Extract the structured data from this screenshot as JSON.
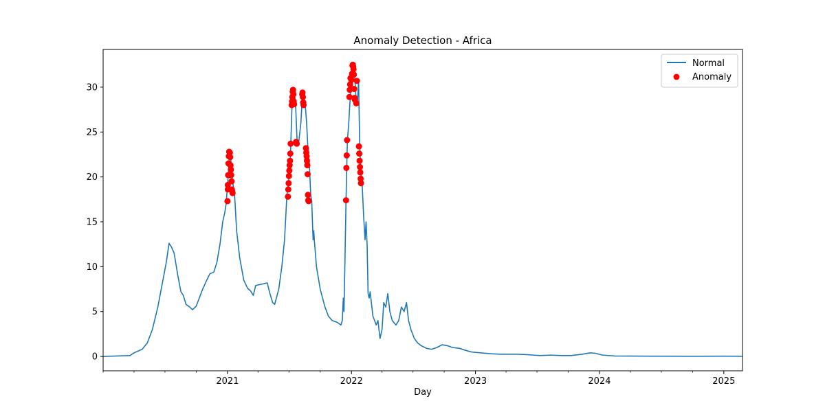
{
  "chart_data": {
    "type": "line",
    "title": "Anomaly Detection - Africa",
    "xlabel": "Day",
    "ylabel": "",
    "x_axis_type": "date",
    "xlim": [
      "2020-01-01",
      "2025-02-25"
    ],
    "ylim": [
      -1.6,
      34.2
    ],
    "x_ticks": [
      {
        "date": "2021-01-01",
        "label": "2021"
      },
      {
        "date": "2022-01-01",
        "label": "2022"
      },
      {
        "date": "2023-01-01",
        "label": "2023"
      },
      {
        "date": "2024-01-01",
        "label": "2024"
      },
      {
        "date": "2025-01-01",
        "label": "2025"
      }
    ],
    "y_ticks": [
      0,
      5,
      10,
      15,
      20,
      25,
      30
    ],
    "grid": false,
    "legend": {
      "placement": "top-right",
      "entries": [
        "Normal",
        "Anomaly"
      ]
    },
    "colors": {
      "normal": "#1f77b4",
      "anomaly": "#ff0000"
    },
    "series": [
      {
        "name": "Normal",
        "kind": "line",
        "points": [
          [
            "2020-01-01",
            0
          ],
          [
            "2020-03-20",
            0.1
          ],
          [
            "2020-04-01",
            0.4
          ],
          [
            "2020-04-25",
            0.8
          ],
          [
            "2020-05-10",
            1.5
          ],
          [
            "2020-05-25",
            3
          ],
          [
            "2020-06-10",
            5.5
          ],
          [
            "2020-06-25",
            8.5
          ],
          [
            "2020-07-05",
            10.5
          ],
          [
            "2020-07-13",
            12.6
          ],
          [
            "2020-07-20",
            12.2
          ],
          [
            "2020-07-28",
            11.5
          ],
          [
            "2020-08-08",
            9
          ],
          [
            "2020-08-17",
            7.2
          ],
          [
            "2020-08-24",
            6.8
          ],
          [
            "2020-09-01",
            5.8
          ],
          [
            "2020-09-12",
            5.5
          ],
          [
            "2020-09-20",
            5.2
          ],
          [
            "2020-10-01",
            5.6
          ],
          [
            "2020-10-10",
            6.5
          ],
          [
            "2020-10-20",
            7.5
          ],
          [
            "2020-11-01",
            8.5
          ],
          [
            "2020-11-10",
            9.2
          ],
          [
            "2020-11-22",
            9.4
          ],
          [
            "2020-12-01",
            10.5
          ],
          [
            "2020-12-10",
            12.5
          ],
          [
            "2020-12-18",
            15
          ],
          [
            "2020-12-24",
            16
          ],
          [
            "2020-12-28",
            17
          ],
          [
            "2021-01-01",
            19
          ],
          [
            "2021-01-05",
            21
          ],
          [
            "2021-01-08",
            22.9
          ],
          [
            "2021-01-12",
            21.5
          ],
          [
            "2021-01-16",
            19.5
          ],
          [
            "2021-01-22",
            18
          ],
          [
            "2021-01-28",
            14
          ],
          [
            "2021-02-06",
            11
          ],
          [
            "2021-02-18",
            8.5
          ],
          [
            "2021-03-01",
            7.6
          ],
          [
            "2021-03-10",
            7.3
          ],
          [
            "2021-03-18",
            6.8
          ],
          [
            "2021-03-25",
            7.9
          ],
          [
            "2021-04-05",
            8
          ],
          [
            "2021-04-18",
            8.1
          ],
          [
            "2021-04-28",
            8.2
          ],
          [
            "2021-05-06",
            7
          ],
          [
            "2021-05-14",
            6
          ],
          [
            "2021-05-20",
            5.8
          ],
          [
            "2021-06-01",
            7.5
          ],
          [
            "2021-06-10",
            10
          ],
          [
            "2021-06-18",
            13
          ],
          [
            "2021-06-25",
            18
          ],
          [
            "2021-07-01",
            20
          ],
          [
            "2021-07-05",
            22
          ],
          [
            "2021-07-10",
            28
          ],
          [
            "2021-07-15",
            29.6
          ],
          [
            "2021-07-20",
            28.5
          ],
          [
            "2021-07-25",
            24
          ],
          [
            "2021-07-29",
            23.6
          ],
          [
            "2021-08-05",
            26
          ],
          [
            "2021-08-10",
            29.3
          ],
          [
            "2021-08-14",
            28
          ],
          [
            "2021-08-18",
            28
          ],
          [
            "2021-08-22",
            26
          ],
          [
            "2021-08-26",
            23
          ],
          [
            "2021-08-30",
            21.5
          ],
          [
            "2021-09-03",
            18
          ],
          [
            "2021-09-06",
            17.3
          ],
          [
            "2021-09-10",
            13
          ],
          [
            "2021-09-12",
            14
          ],
          [
            "2021-09-14",
            12.8
          ],
          [
            "2021-09-20",
            10
          ],
          [
            "2021-10-01",
            7.5
          ],
          [
            "2021-10-15",
            5.5
          ],
          [
            "2021-10-25",
            4.5
          ],
          [
            "2021-11-05",
            4
          ],
          [
            "2021-11-20",
            3.8
          ],
          [
            "2021-12-01",
            3.5
          ],
          [
            "2021-12-05",
            4
          ],
          [
            "2021-12-08",
            6.5
          ],
          [
            "2021-12-10",
            5
          ],
          [
            "2021-12-13",
            11
          ],
          [
            "2021-12-16",
            17.4
          ],
          [
            "2021-12-18",
            21
          ],
          [
            "2021-12-20",
            24
          ],
          [
            "2021-12-24",
            26
          ],
          [
            "2021-12-27",
            28
          ],
          [
            "2022-01-01",
            30.5
          ],
          [
            "2022-01-04",
            31
          ],
          [
            "2022-01-07",
            32.4
          ],
          [
            "2022-01-10",
            31.5
          ],
          [
            "2022-01-14",
            29
          ],
          [
            "2022-01-18",
            28
          ],
          [
            "2022-01-22",
            30.7
          ],
          [
            "2022-01-25",
            24
          ],
          [
            "2022-01-28",
            21
          ],
          [
            "2022-02-01",
            19.5
          ],
          [
            "2022-02-06",
            15.5
          ],
          [
            "2022-02-10",
            13
          ],
          [
            "2022-02-13",
            15
          ],
          [
            "2022-02-16",
            12.5
          ],
          [
            "2022-02-19",
            7
          ],
          [
            "2022-02-22",
            6.5
          ],
          [
            "2022-02-25",
            7.2
          ],
          [
            "2022-03-05",
            4.5
          ],
          [
            "2022-03-15",
            3.5
          ],
          [
            "2022-03-20",
            4
          ],
          [
            "2022-03-26",
            2
          ],
          [
            "2022-04-01",
            3
          ],
          [
            "2022-04-06",
            6
          ],
          [
            "2022-04-12",
            5.5
          ],
          [
            "2022-04-18",
            7
          ],
          [
            "2022-04-24",
            5
          ],
          [
            "2022-05-01",
            4
          ],
          [
            "2022-05-12",
            3.5
          ],
          [
            "2022-05-20",
            4
          ],
          [
            "2022-05-28",
            5.5
          ],
          [
            "2022-06-05",
            5
          ],
          [
            "2022-06-12",
            6
          ],
          [
            "2022-06-18",
            4
          ],
          [
            "2022-06-25",
            3
          ],
          [
            "2022-07-05",
            2
          ],
          [
            "2022-07-15",
            1.5
          ],
          [
            "2022-07-25",
            1.2
          ],
          [
            "2022-08-10",
            0.9
          ],
          [
            "2022-08-25",
            0.8
          ],
          [
            "2022-09-10",
            1
          ],
          [
            "2022-09-25",
            1.3
          ],
          [
            "2022-10-10",
            1.2
          ],
          [
            "2022-10-25",
            1
          ],
          [
            "2022-11-15",
            0.9
          ],
          [
            "2022-12-01",
            0.7
          ],
          [
            "2022-12-20",
            0.5
          ],
          [
            "2023-01-15",
            0.4
          ],
          [
            "2023-02-15",
            0.3
          ],
          [
            "2023-03-15",
            0.25
          ],
          [
            "2023-05-01",
            0.25
          ],
          [
            "2023-06-01",
            0.2
          ],
          [
            "2023-06-20",
            0.15
          ],
          [
            "2023-07-10",
            0.1
          ],
          [
            "2023-08-10",
            0.15
          ],
          [
            "2023-09-10",
            0.1
          ],
          [
            "2023-10-10",
            0.1
          ],
          [
            "2023-11-01",
            0.2
          ],
          [
            "2023-11-20",
            0.3
          ],
          [
            "2023-12-05",
            0.4
          ],
          [
            "2023-12-20",
            0.35
          ],
          [
            "2024-01-10",
            0.15
          ],
          [
            "2024-02-15",
            0.05
          ],
          [
            "2024-06-01",
            0.03
          ],
          [
            "2024-10-01",
            0.02
          ],
          [
            "2025-01-01",
            0.03
          ],
          [
            "2025-02-25",
            0.02
          ]
        ]
      },
      {
        "name": "Anomaly",
        "kind": "scatter",
        "points": [
          [
            "2021-01-01",
            17.3
          ],
          [
            "2021-01-02",
            18.6
          ],
          [
            "2021-01-02",
            19.1
          ],
          [
            "2021-01-03",
            20.2
          ],
          [
            "2021-01-04",
            21.5
          ],
          [
            "2021-01-05",
            22.3
          ],
          [
            "2021-01-06",
            22.8
          ],
          [
            "2021-01-08",
            22.7
          ],
          [
            "2021-01-09",
            22.2
          ],
          [
            "2021-01-10",
            21.3
          ],
          [
            "2021-01-11",
            20.8
          ],
          [
            "2021-01-12",
            20.2
          ],
          [
            "2021-01-13",
            19.5
          ],
          [
            "2021-01-14",
            18.6
          ],
          [
            "2021-01-15",
            18.4
          ],
          [
            "2021-01-16",
            18.2
          ],
          [
            "2021-06-28",
            17.8
          ],
          [
            "2021-06-29",
            18.6
          ],
          [
            "2021-06-30",
            19.3
          ],
          [
            "2021-07-01",
            20.1
          ],
          [
            "2021-07-02",
            20.7
          ],
          [
            "2021-07-03",
            21.3
          ],
          [
            "2021-07-04",
            21.8
          ],
          [
            "2021-07-05",
            22.6
          ],
          [
            "2021-07-06",
            23.7
          ],
          [
            "2021-07-09",
            28.0
          ],
          [
            "2021-07-10",
            28.4
          ],
          [
            "2021-07-11",
            28.9
          ],
          [
            "2021-07-12",
            29.5
          ],
          [
            "2021-07-13",
            29.7
          ],
          [
            "2021-07-14",
            29.2
          ],
          [
            "2021-07-15",
            28.4
          ],
          [
            "2021-07-16",
            28.1
          ],
          [
            "2021-07-22",
            23.9
          ],
          [
            "2021-07-24",
            23.7
          ],
          [
            "2021-08-09",
            29.2
          ],
          [
            "2021-08-10",
            29.4
          ],
          [
            "2021-08-11",
            28.9
          ],
          [
            "2021-08-12",
            28.3
          ],
          [
            "2021-08-13",
            28.0
          ],
          [
            "2021-08-20",
            23.2
          ],
          [
            "2021-08-21",
            22.7
          ],
          [
            "2021-08-22",
            22.3
          ],
          [
            "2021-08-23",
            21.8
          ],
          [
            "2021-08-24",
            21.3
          ],
          [
            "2021-08-25",
            20.3
          ],
          [
            "2021-08-26",
            18.0
          ],
          [
            "2021-08-27",
            17.4
          ],
          [
            "2021-08-28",
            17.3
          ],
          [
            "2021-12-16",
            17.4
          ],
          [
            "2021-12-17",
            21.0
          ],
          [
            "2021-12-18",
            22.4
          ],
          [
            "2021-12-19",
            24.1
          ],
          [
            "2021-12-26",
            28.9
          ],
          [
            "2021-12-27",
            29.7
          ],
          [
            "2021-12-28",
            30.3
          ],
          [
            "2021-12-29",
            31.0
          ],
          [
            "2022-01-01",
            30.8
          ],
          [
            "2022-01-03",
            31.5
          ],
          [
            "2022-01-04",
            32.4
          ],
          [
            "2022-01-05",
            32.5
          ],
          [
            "2022-01-06",
            32.3
          ],
          [
            "2022-01-07",
            32.0
          ],
          [
            "2022-01-08",
            31.4
          ],
          [
            "2022-01-09",
            29.8
          ],
          [
            "2022-01-10",
            28.8
          ],
          [
            "2022-01-11",
            28.6
          ],
          [
            "2022-01-15",
            28.2
          ],
          [
            "2022-01-17",
            30.7
          ],
          [
            "2022-01-23",
            23.4
          ],
          [
            "2022-01-24",
            22.6
          ],
          [
            "2022-01-25",
            21.8
          ],
          [
            "2022-01-26",
            21.1
          ],
          [
            "2022-01-27",
            20.5
          ],
          [
            "2022-01-28",
            19.8
          ],
          [
            "2022-01-29",
            19.3
          ]
        ]
      }
    ]
  }
}
